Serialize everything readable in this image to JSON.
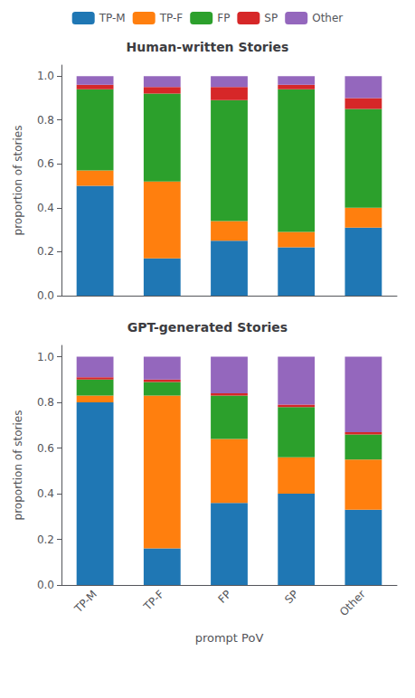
{
  "chart_data": [
    {
      "type": "bar",
      "stacked": true,
      "title": "Human-written Stories",
      "ylabel": "proportion of stories",
      "categories": [
        "TP-M",
        "TP-F",
        "FP",
        "SP",
        "Other"
      ],
      "series": [
        {
          "name": "TP-M",
          "color": "#1f77b4",
          "values": [
            0.5,
            0.17,
            0.25,
            0.22,
            0.31
          ]
        },
        {
          "name": "TP-F",
          "color": "#ff7f0e",
          "values": [
            0.07,
            0.35,
            0.09,
            0.07,
            0.09
          ]
        },
        {
          "name": "FP",
          "color": "#2ca02c",
          "values": [
            0.37,
            0.4,
            0.55,
            0.65,
            0.45
          ]
        },
        {
          "name": "SP",
          "color": "#d62728",
          "values": [
            0.02,
            0.03,
            0.06,
            0.02,
            0.05
          ]
        },
        {
          "name": "Other",
          "color": "#9467bd",
          "values": [
            0.04,
            0.05,
            0.05,
            0.04,
            0.1
          ]
        }
      ],
      "ylim": [
        0,
        1.05
      ],
      "yticks": [
        {
          "value": 0,
          "label": "0.0"
        },
        0.2,
        0.4,
        0.6,
        0.8,
        {
          "value": 1,
          "label": "1.0"
        }
      ],
      "grid": false,
      "legend": "top",
      "tick_labels": "y"
    },
    {
      "type": "bar",
      "stacked": true,
      "title": "GPT-generated Stories",
      "ylabel": "proportion of stories",
      "xlabel": "prompt PoV",
      "categories": [
        "TP-M",
        "TP-F",
        "FP",
        "SP",
        "Other"
      ],
      "series": [
        {
          "name": "TP-M",
          "color": "#1f77b4",
          "values": [
            0.8,
            0.16,
            0.36,
            0.4,
            0.33
          ]
        },
        {
          "name": "TP-F",
          "color": "#ff7f0e",
          "values": [
            0.03,
            0.67,
            0.28,
            0.16,
            0.22
          ]
        },
        {
          "name": "FP",
          "color": "#2ca02c",
          "values": [
            0.07,
            0.06,
            0.19,
            0.22,
            0.11
          ]
        },
        {
          "name": "SP",
          "color": "#d62728",
          "values": [
            0.01,
            0.01,
            0.01,
            0.01,
            0.01
          ]
        },
        {
          "name": "Other",
          "color": "#9467bd",
          "values": [
            0.09,
            0.1,
            0.16,
            0.21,
            0.33
          ]
        }
      ],
      "ylim": [
        0,
        1.05
      ],
      "yticks": [
        {
          "value": 0,
          "label": "0.0"
        },
        0.2,
        0.4,
        0.6,
        0.8,
        {
          "value": 1,
          "label": "1.0"
        }
      ],
      "grid": false
    }
  ]
}
